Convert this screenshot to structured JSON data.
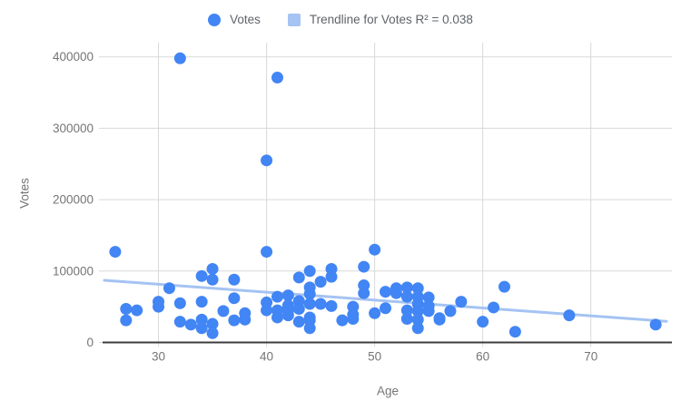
{
  "chart": {
    "legend": {
      "votes_label": "Votes",
      "trendline_label": "Trendline for Votes R² = 0.038"
    },
    "x_axis_title": "Age",
    "y_axis_title": "Votes"
  },
  "colors": {
    "point": "#4285f4",
    "trendline": "#a5c3f3",
    "grid": "#d9d9d9",
    "axis_line": "#3c3c3c",
    "tick_text": "#757575"
  },
  "chart_data": {
    "type": "scatter",
    "title": "",
    "xlabel": "Age",
    "ylabel": "Votes",
    "x_ticks": [
      30,
      40,
      50,
      60,
      70
    ],
    "y_ticks": [
      0,
      100000,
      200000,
      300000,
      400000
    ],
    "xlim": [
      25,
      77.5
    ],
    "ylim": [
      0,
      420000
    ],
    "grid": true,
    "legend_position": "top-center",
    "series": [
      {
        "name": "Votes",
        "points": [
          [
            26,
            127000
          ],
          [
            27,
            47000
          ],
          [
            27,
            31000
          ],
          [
            28,
            45000
          ],
          [
            30,
            57000
          ],
          [
            30,
            50000
          ],
          [
            31,
            76000
          ],
          [
            32,
            398000
          ],
          [
            32,
            55000
          ],
          [
            32,
            29000
          ],
          [
            33,
            25000
          ],
          [
            34,
            93000
          ],
          [
            34,
            57000
          ],
          [
            34,
            32000
          ],
          [
            34,
            20000
          ],
          [
            35,
            103000
          ],
          [
            35,
            88000
          ],
          [
            35,
            26000
          ],
          [
            35,
            13000
          ],
          [
            36,
            44000
          ],
          [
            37,
            88000
          ],
          [
            37,
            62000
          ],
          [
            37,
            31000
          ],
          [
            38,
            41000
          ],
          [
            38,
            32000
          ],
          [
            40,
            255000
          ],
          [
            40,
            127000
          ],
          [
            40,
            56000
          ],
          [
            40,
            45000
          ],
          [
            41,
            371000
          ],
          [
            41,
            64000
          ],
          [
            41,
            45000
          ],
          [
            41,
            35000
          ],
          [
            42,
            66000
          ],
          [
            42,
            52000
          ],
          [
            42,
            50000
          ],
          [
            42,
            45000
          ],
          [
            42,
            38000
          ],
          [
            43,
            91000
          ],
          [
            43,
            58000
          ],
          [
            43,
            47000
          ],
          [
            43,
            29000
          ],
          [
            44,
            100000
          ],
          [
            44,
            77000
          ],
          [
            44,
            68000
          ],
          [
            44,
            54000
          ],
          [
            44,
            35000
          ],
          [
            44,
            31000
          ],
          [
            44,
            20000
          ],
          [
            45,
            85000
          ],
          [
            45,
            54000
          ],
          [
            46,
            103000
          ],
          [
            46,
            92000
          ],
          [
            46,
            51000
          ],
          [
            47,
            31000
          ],
          [
            48,
            33000
          ],
          [
            48,
            50000
          ],
          [
            48,
            39000
          ],
          [
            49,
            106000
          ],
          [
            49,
            80000
          ],
          [
            49,
            69000
          ],
          [
            50,
            130000
          ],
          [
            50,
            41000
          ],
          [
            51,
            71000
          ],
          [
            51,
            48000
          ],
          [
            52,
            76000
          ],
          [
            52,
            69000
          ],
          [
            53,
            77000
          ],
          [
            53,
            64000
          ],
          [
            53,
            45000
          ],
          [
            53,
            33000
          ],
          [
            54,
            76000
          ],
          [
            54,
            64000
          ],
          [
            54,
            54000
          ],
          [
            54,
            44000
          ],
          [
            54,
            32000
          ],
          [
            54,
            20000
          ],
          [
            55,
            63000
          ],
          [
            55,
            51000
          ],
          [
            55,
            44000
          ],
          [
            56,
            34000
          ],
          [
            56,
            32000
          ],
          [
            57,
            44000
          ],
          [
            58,
            57000
          ],
          [
            60,
            29000
          ],
          [
            61,
            49000
          ],
          [
            62,
            78000
          ],
          [
            63,
            15000
          ],
          [
            68,
            38000
          ],
          [
            76,
            25000
          ]
        ]
      }
    ],
    "trendline": {
      "series": "Votes",
      "r_squared": 0.038,
      "start": [
        25,
        87000
      ],
      "end": [
        77,
        29500
      ]
    }
  }
}
